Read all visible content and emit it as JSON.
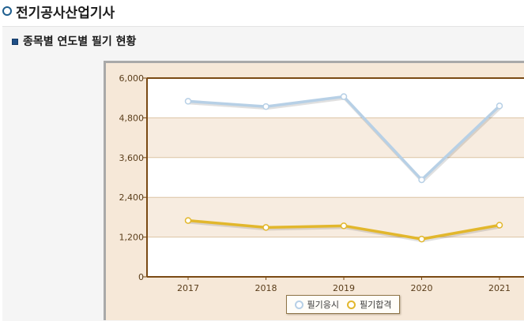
{
  "page": {
    "title": "전기공사산업기사",
    "section_title": "종목별 연도별 필기 현황"
  },
  "icons": {
    "title_icon": "ring-bullet-icon",
    "section_icon": "square-bullet-icon"
  },
  "colors": {
    "series_apply": "#b7d0e6",
    "series_pass": "#e2b72c",
    "axis": "#7a4a14",
    "band": "#f7ece0"
  },
  "chart_data": {
    "type": "line",
    "title": "",
    "xlabel": "",
    "ylabel": "",
    "categories": [
      "2017",
      "2018",
      "2019",
      "2020",
      "2021"
    ],
    "ylim": [
      0,
      6000
    ],
    "yticks": [
      "6,000",
      "4,800",
      "3,600",
      "2,400",
      "1,200",
      "0"
    ],
    "ytick_values": [
      6000,
      4800,
      3600,
      2400,
      1200,
      0
    ],
    "grid": true,
    "legend_position": "bottom",
    "series": [
      {
        "name": "필기응시",
        "values": [
          5300,
          5140,
          5440,
          2930,
          5160
        ]
      },
      {
        "name": "필기합격",
        "values": [
          1700,
          1490,
          1540,
          1140,
          1560
        ]
      }
    ]
  }
}
